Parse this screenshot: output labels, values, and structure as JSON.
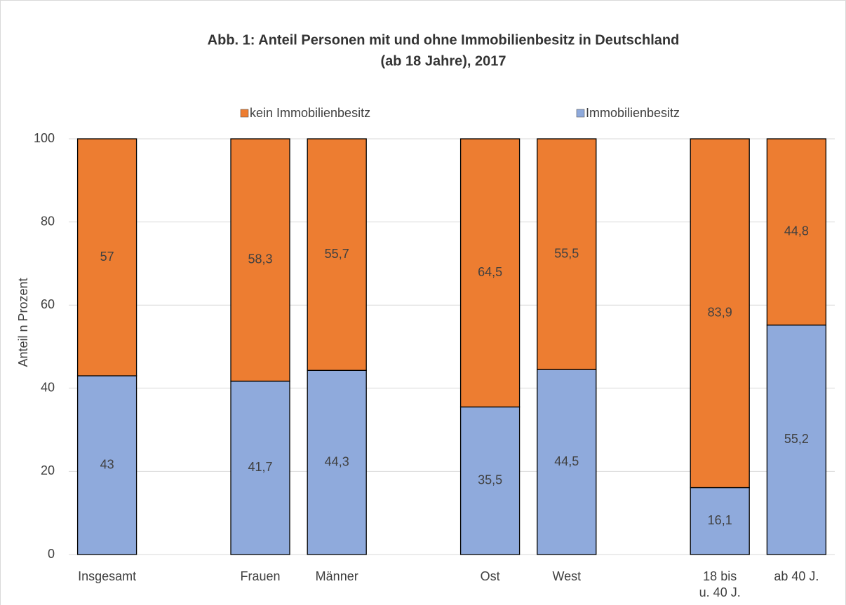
{
  "chart_data": {
    "type": "stacked_bar",
    "title": "Abb. 1: Anteil Personen mit und ohne Immobilienbesitz in Deutschland",
    "subtitle": "(ab 18 Jahre), 2017",
    "y_label": "Anteil n Prozent",
    "categories": [
      "Insgesamt",
      null,
      "Frauen",
      "Männer",
      null,
      "Ost",
      "West",
      null,
      "18 bis\nu. 40 J.",
      "ab 40 J."
    ],
    "series": [
      {
        "name": "Immobilienbesitz",
        "color": "#8faadc",
        "values": [
          43,
          null,
          41.7,
          44.3,
          null,
          35.5,
          44.5,
          null,
          16.1,
          55.2
        ],
        "value_labels": [
          "43",
          null,
          "41,7",
          "44,3",
          null,
          "35,5",
          "44,5",
          null,
          "16,1",
          "55,2"
        ]
      },
      {
        "name": "kein Immobilienbesitz",
        "color": "#ed7d31",
        "values": [
          57,
          null,
          58.3,
          55.7,
          null,
          64.5,
          55.5,
          null,
          83.9,
          44.8
        ],
        "value_labels": [
          "57",
          null,
          "58,3",
          "55,7",
          null,
          "64,5",
          "55,5",
          null,
          "83,9",
          "44,8"
        ]
      }
    ],
    "ylim": [
      0,
      100
    ],
    "yticks": [
      0,
      20,
      40,
      60,
      80,
      100
    ],
    "grid": true,
    "legend": "top"
  }
}
